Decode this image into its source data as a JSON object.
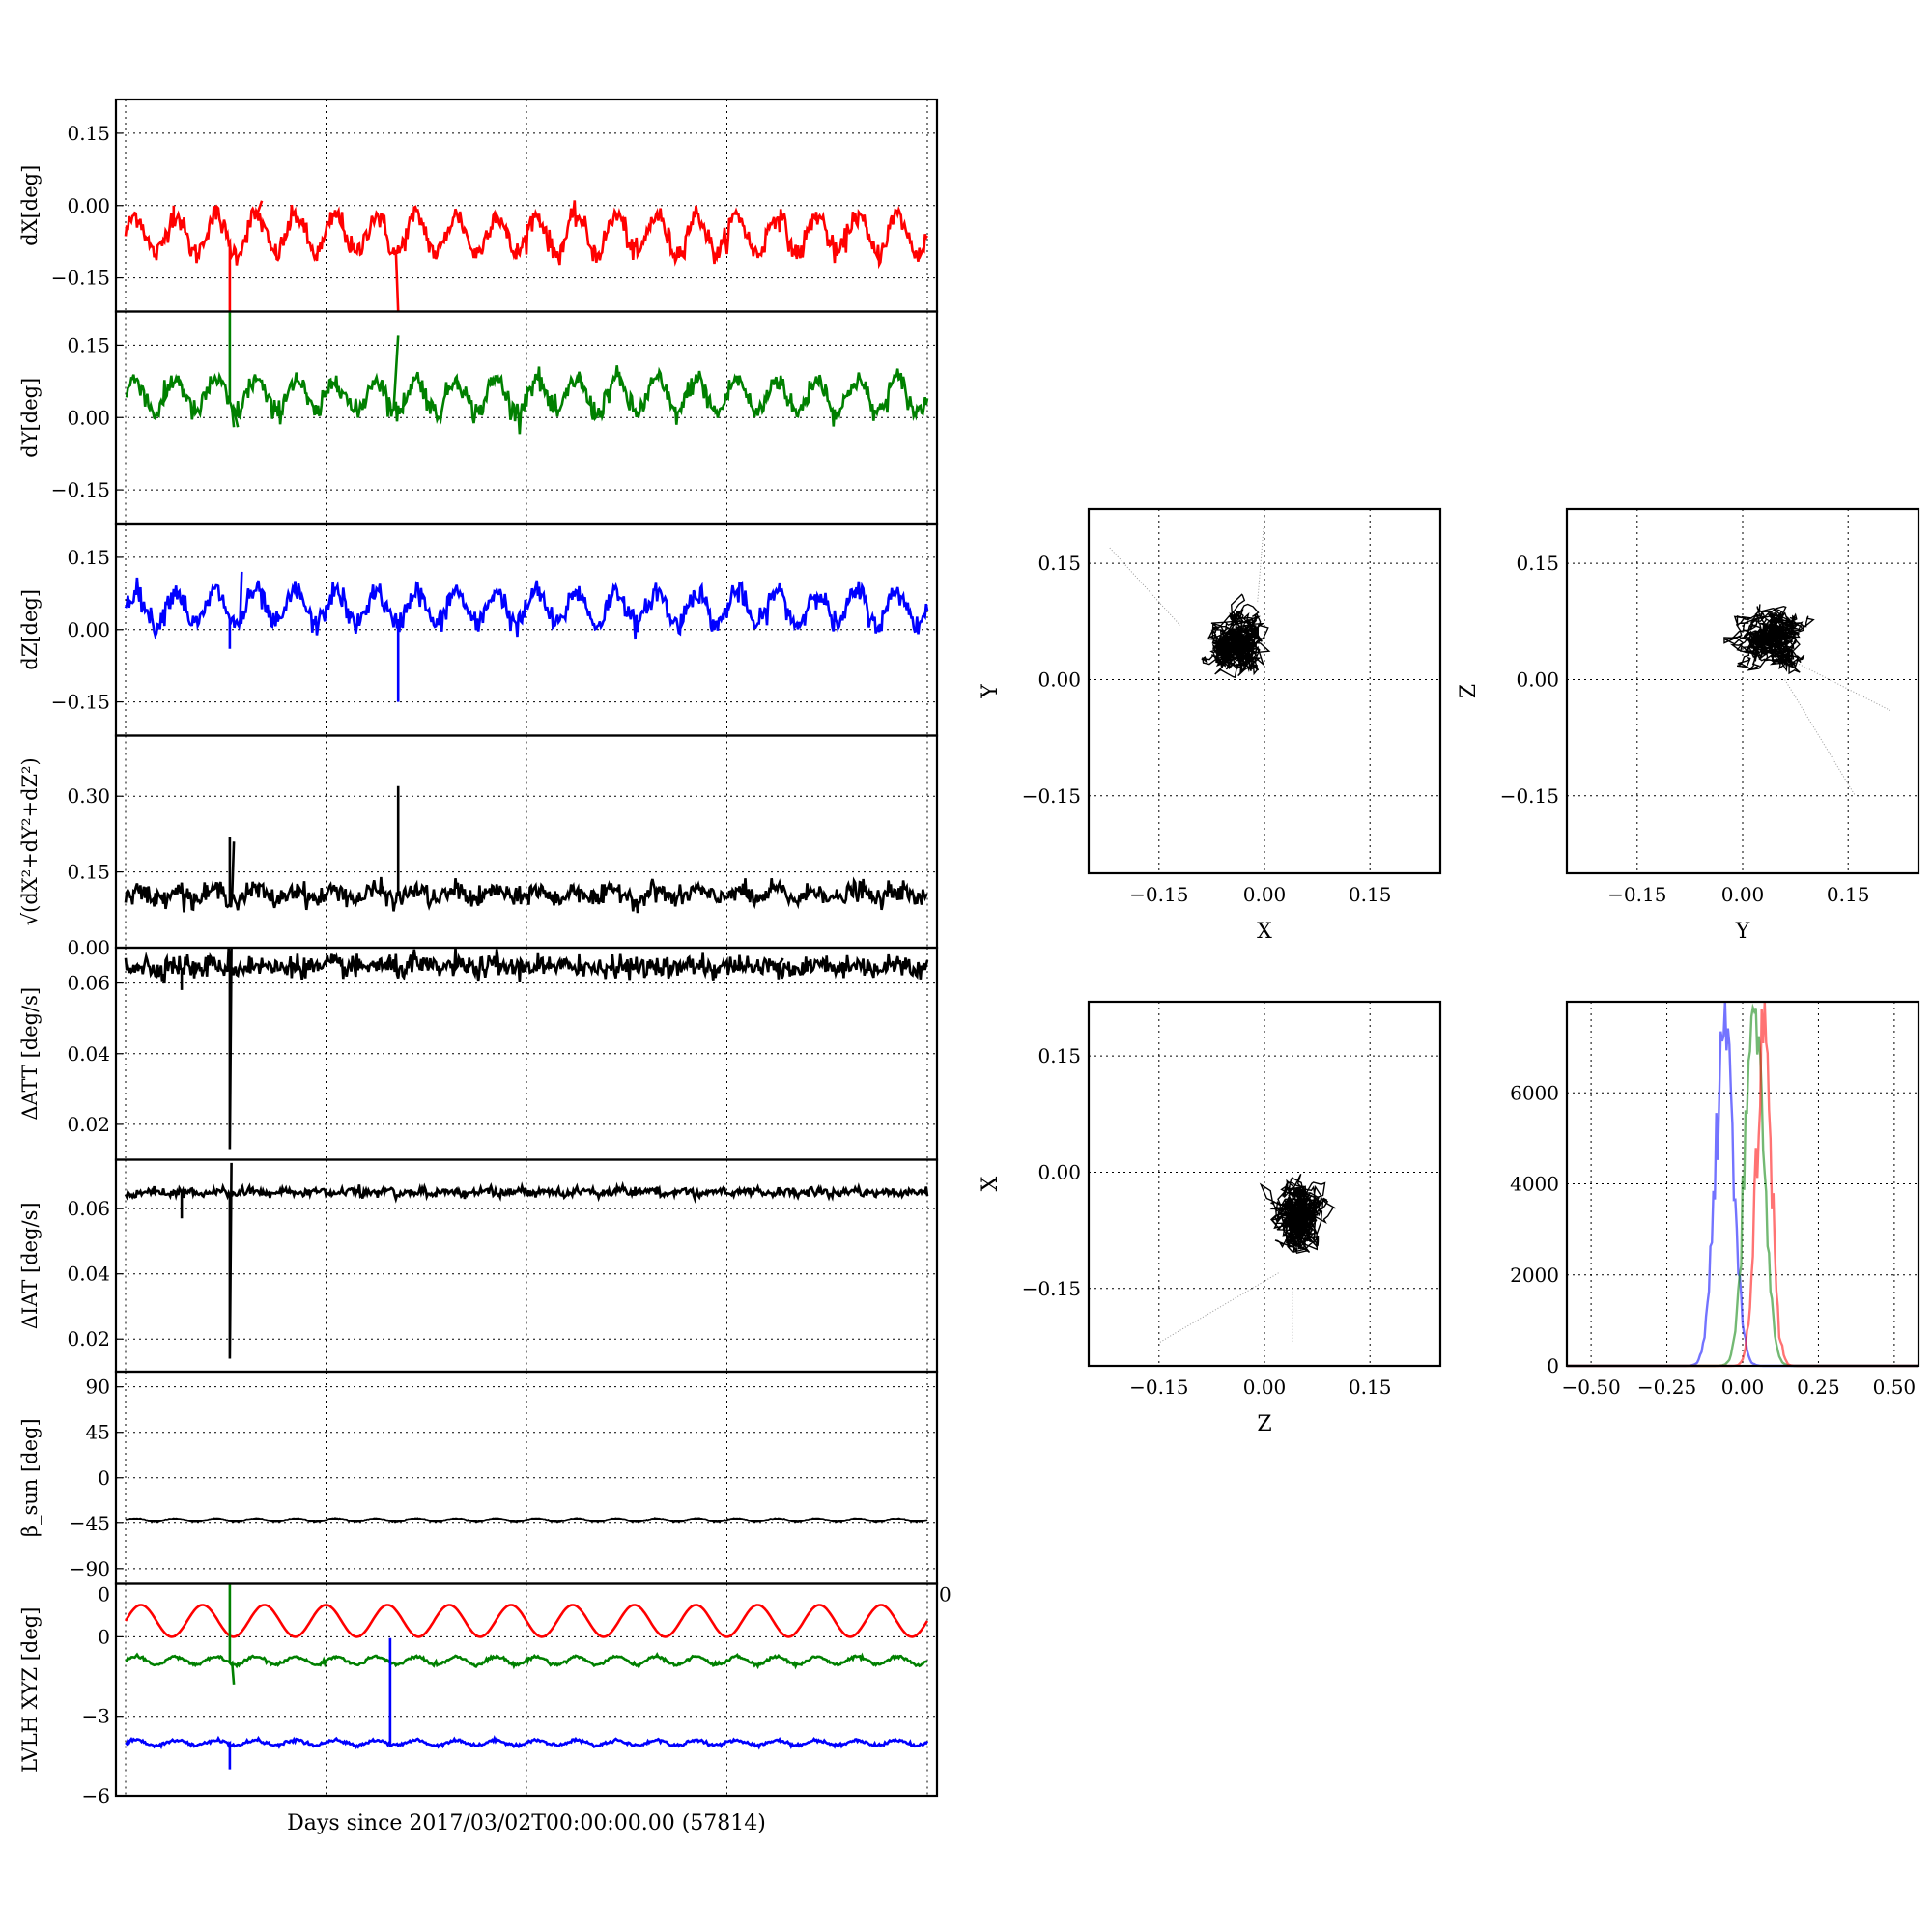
{
  "figure": {
    "xlabel": "Days since 2017/03/02T00:00:00.00 (57814)"
  },
  "chart_data": [
    {
      "id": "dx",
      "type": "line",
      "ylabel": "dX[deg]",
      "ylim": [
        -0.22,
        0.22
      ],
      "yticks": [
        0.15,
        0.0,
        -0.15
      ],
      "ytick_labels": [
        "0.15",
        "0.00",
        "−0.15"
      ],
      "grid": true,
      "series": [
        {
          "color": "#ff0000",
          "baseline": -0.06,
          "amp": 0.04,
          "noise": 0.012,
          "spikes": [
            [
              0.13,
              -0.22
            ],
            [
              0.34,
              -0.22
            ],
            [
              0.06,
              0.0
            ],
            [
              0.17,
              0.01
            ]
          ]
        }
      ]
    },
    {
      "id": "dy",
      "type": "line",
      "ylabel": "dY[deg]",
      "ylim": [
        -0.22,
        0.22
      ],
      "yticks": [
        0.15,
        0.0,
        -0.15
      ],
      "ytick_labels": [
        "0.15",
        "0.00",
        "−0.15"
      ],
      "grid": true,
      "series": [
        {
          "color": "#008000",
          "baseline": 0.045,
          "amp": 0.035,
          "noise": 0.012,
          "spikes": [
            [
              0.13,
              0.22
            ],
            [
              0.135,
              -0.02
            ],
            [
              0.34,
              0.17
            ],
            [
              0.14,
              -0.02
            ]
          ]
        }
      ]
    },
    {
      "id": "dz",
      "type": "line",
      "ylabel": "dZ[deg]",
      "ylim": [
        -0.22,
        0.22
      ],
      "yticks": [
        0.15,
        0.0,
        -0.15
      ],
      "ytick_labels": [
        "0.15",
        "0.00",
        "−0.15"
      ],
      "grid": true,
      "series": [
        {
          "color": "#0000ff",
          "baseline": 0.045,
          "amp": 0.035,
          "noise": 0.012,
          "spikes": [
            [
              0.34,
              -0.15
            ],
            [
              0.13,
              -0.04
            ],
            [
              0.145,
              0.12
            ]
          ]
        }
      ]
    },
    {
      "id": "dr",
      "type": "line",
      "ylabel": "√(dX²+dY²+dZ²)",
      "ylim": [
        0.0,
        0.42
      ],
      "yticks": [
        0.3,
        0.15,
        0.0
      ],
      "ytick_labels": [
        "0.30",
        "0.15",
        "0.00"
      ],
      "grid": true,
      "series": [
        {
          "color": "#000000",
          "baseline": 0.105,
          "amp": 0.01,
          "noise": 0.01,
          "spikes": [
            [
              0.34,
              0.32
            ],
            [
              0.13,
              0.22
            ],
            [
              0.135,
              0.21
            ]
          ]
        }
      ]
    },
    {
      "id": "datt",
      "type": "line",
      "ylabel": "ΔATT [deg/s]",
      "ylim": [
        0.01,
        0.07
      ],
      "yticks": [
        0.06,
        0.04,
        0.02
      ],
      "ytick_labels": [
        "0.06",
        "0.04",
        "0.02"
      ],
      "grid": true,
      "series": [
        {
          "color": "#000000",
          "baseline": 0.0645,
          "amp": 0.0005,
          "noise": 0.0015,
          "spikes": [
            [
              0.13,
              0.013
            ],
            [
              0.132,
              0.07
            ],
            [
              0.33,
              0.068
            ],
            [
              0.82,
              0.067
            ],
            [
              0.07,
              0.058
            ]
          ]
        }
      ]
    },
    {
      "id": "diat",
      "type": "line",
      "ylabel": "ΔIAT [deg/s]",
      "ylim": [
        0.01,
        0.075
      ],
      "yticks": [
        0.06,
        0.04,
        0.02
      ],
      "ytick_labels": [
        "0.06",
        "0.04",
        "0.02"
      ],
      "grid": true,
      "series": [
        {
          "color": "#000000",
          "baseline": 0.065,
          "amp": 0.0015,
          "noise": 0.0006,
          "spikes": [
            [
              0.13,
              0.014
            ],
            [
              0.132,
              0.074
            ],
            [
              0.07,
              0.057
            ]
          ]
        }
      ]
    },
    {
      "id": "beta",
      "type": "line",
      "ylabel": "β_sun [deg]",
      "ylim": [
        -105,
        105
      ],
      "yticks": [
        90,
        45,
        0,
        -45,
        -90
      ],
      "ytick_labels": [
        "90",
        "45",
        "0",
        "−45",
        "−90"
      ],
      "grid": true,
      "series": [
        {
          "color": "#000000",
          "baseline": -42,
          "amp": 1.5,
          "noise": 0.2,
          "spikes": []
        }
      ]
    },
    {
      "id": "lvlh",
      "type": "line",
      "ylabel": "LVLH XYZ [deg]",
      "ylim": [
        -6,
        2
      ],
      "yticks": [
        0,
        -3,
        -6
      ],
      "ytick_labels": [
        "0",
        "−3",
        "−6"
      ],
      "corner_labels": [
        "0",
        "0"
      ],
      "grid": true,
      "series": [
        {
          "color": "#ff0000",
          "baseline": 0.6,
          "amp": 0.6,
          "noise": 0.02,
          "spikes": []
        },
        {
          "color": "#008000",
          "baseline": -0.9,
          "amp": 0.15,
          "noise": 0.03,
          "spikes": [
            [
              0.13,
              2.2
            ],
            [
              0.135,
              -1.8
            ]
          ]
        },
        {
          "color": "#0000ff",
          "baseline": -4.0,
          "amp": 0.1,
          "noise": 0.03,
          "spikes": [
            [
              0.33,
              -0.05
            ],
            [
              0.13,
              -5.0
            ]
          ]
        }
      ]
    },
    {
      "id": "xy",
      "type": "scatter",
      "xlabel": "X",
      "ylabel": "Y",
      "xlim": [
        -0.25,
        0.25
      ],
      "ylim": [
        -0.25,
        0.22
      ],
      "ticks": [
        -0.15,
        0.0,
        0.15
      ],
      "tick_labels": [
        "−0.15",
        "0.00",
        "0.15"
      ],
      "cloud_center": [
        -0.04,
        0.045
      ],
      "cloud_spread": [
        0.035,
        0.035
      ],
      "tilt": 0.5,
      "trails": [
        [
          [
            -0.22,
            0.17
          ],
          [
            -0.12,
            0.07
          ]
        ],
        [
          [
            0.0,
            0.21
          ],
          [
            -0.01,
            0.1
          ]
        ]
      ]
    },
    {
      "id": "yz",
      "type": "scatter",
      "xlabel": "Y",
      "ylabel": "Z",
      "xlim": [
        -0.25,
        0.25
      ],
      "ylim": [
        -0.25,
        0.22
      ],
      "ticks": [
        -0.15,
        0.0,
        0.15
      ],
      "tick_labels": [
        "−0.15",
        "0.00",
        "0.15"
      ],
      "cloud_center": [
        0.04,
        0.055
      ],
      "cloud_spread": [
        0.04,
        0.03
      ],
      "tilt": -0.7,
      "trails": [
        [
          [
            0.08,
            0.02
          ],
          [
            0.21,
            -0.04
          ]
        ],
        [
          [
            0.06,
            0.0
          ],
          [
            0.16,
            -0.15
          ]
        ]
      ]
    },
    {
      "id": "zx",
      "type": "scatter",
      "xlabel": "Z",
      "ylabel": "X",
      "xlim": [
        -0.25,
        0.25
      ],
      "ylim": [
        -0.25,
        0.22
      ],
      "ticks": [
        -0.15,
        0.0,
        0.15
      ],
      "tick_labels": [
        "−0.15",
        "0.00",
        "0.15"
      ],
      "cloud_center": [
        0.05,
        -0.06
      ],
      "cloud_spread": [
        0.035,
        0.04
      ],
      "tilt": 0.1,
      "trails": [
        [
          [
            0.02,
            -0.13
          ],
          [
            -0.15,
            -0.22
          ]
        ],
        [
          [
            0.04,
            -0.15
          ],
          [
            0.04,
            -0.22
          ]
        ]
      ]
    },
    {
      "id": "hist",
      "type": "histogram",
      "xlim": [
        -0.58,
        0.58
      ],
      "ylim": [
        0,
        8000
      ],
      "xticks": [
        -0.5,
        -0.25,
        0.0,
        0.25,
        0.5
      ],
      "xtick_labels": [
        "−0.50",
        "−0.25",
        "0.00",
        "0.25",
        "0.50"
      ],
      "yticks": [
        0,
        2000,
        4000,
        6000
      ],
      "ytick_labels": [
        "0",
        "2000",
        "4000",
        "6000"
      ],
      "series": [
        {
          "color": "#0000ff",
          "center": -0.06,
          "width": 0.03,
          "peak": 7600,
          "skew": -1
        },
        {
          "color": "#008000",
          "center": 0.04,
          "width": 0.03,
          "peak": 7900,
          "skew": 1
        },
        {
          "color": "#ff0000",
          "center": 0.07,
          "width": 0.025,
          "peak": 7400,
          "skew": 0
        }
      ]
    }
  ]
}
